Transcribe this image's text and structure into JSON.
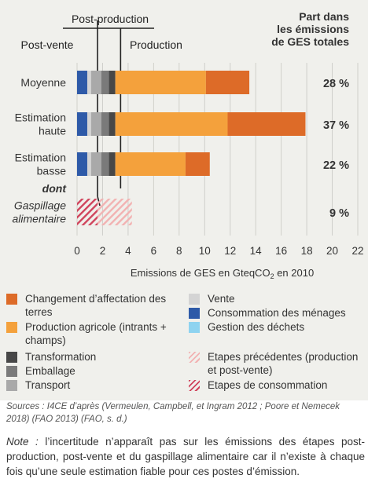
{
  "chart_data": {
    "type": "bar",
    "stacked": true,
    "orientation": "horizontal",
    "categories": [
      "Moyenne",
      "Estimation haute",
      "Estimation basse",
      "Gaspillage alimentaire"
    ],
    "category_lines": [
      [
        "Moyenne"
      ],
      [
        "Estimation",
        "haute"
      ],
      [
        "Estimation",
        "basse"
      ],
      [
        "Gaspillage",
        "alimentaire"
      ]
    ],
    "dont_label": "dont",
    "series": [
      {
        "name": "Consommation des ménages",
        "color": "#2e5aa8",
        "values": [
          0.8,
          0.8,
          0.8,
          null
        ]
      },
      {
        "name": "Vente",
        "color": "#d4d4d4",
        "values": [
          0.3,
          0.3,
          0.3,
          null
        ]
      },
      {
        "name": "Transport",
        "color": "#a9a9a9",
        "values": [
          0.8,
          0.8,
          0.8,
          null
        ]
      },
      {
        "name": "Emballage",
        "color": "#7a7a7a",
        "values": [
          0.6,
          0.6,
          0.6,
          null
        ]
      },
      {
        "name": "Transformation",
        "color": "#474747",
        "values": [
          0.5,
          0.5,
          0.5,
          null
        ]
      },
      {
        "name": "Production agricole (intrants + champs)",
        "color": "#f4a13c",
        "values": [
          7.1,
          8.8,
          5.5,
          null
        ]
      },
      {
        "name": "Changement d'affectation des terres",
        "color": "#dd6b28",
        "values": [
          3.4,
          6.1,
          1.9,
          null
        ]
      },
      {
        "name": "Etapes de consommation",
        "color": "#d0445c",
        "values": [
          null,
          null,
          null,
          1.6
        ]
      },
      {
        "name": "Etapes précédentes (production et post-vente)",
        "color": "#f2b2b2",
        "values": [
          null,
          null,
          null,
          2.7
        ]
      }
    ],
    "share_header": [
      "Part dans",
      "les émissions",
      "de GES totales"
    ],
    "shares": [
      "28 %",
      "37 %",
      "22 %",
      "9 %"
    ],
    "stage_labels": {
      "post_production": "Post-production",
      "post_vente": "Post-vente",
      "production": "Production"
    },
    "xlabel_prefix": "Emissions de GES en GteqCO",
    "xlabel_sub": "2",
    "xlabel_suffix": " en 2010",
    "xticks": [
      0,
      2,
      4,
      6,
      8,
      10,
      12,
      14,
      16,
      18,
      20,
      22
    ],
    "xlim": [
      0,
      22
    ]
  },
  "legend": [
    {
      "label": "Changement d’affectation des terres",
      "color": "#dd6b28",
      "pattern": "solid"
    },
    {
      "label": "Production agricole (intrants + champs)",
      "color": "#f4a13c",
      "pattern": "solid"
    },
    {
      "label": "Transformation",
      "color": "#474747",
      "pattern": "solid"
    },
    {
      "label": "Emballage",
      "color": "#7a7a7a",
      "pattern": "solid"
    },
    {
      "label": "Transport",
      "color": "#a9a9a9",
      "pattern": "solid"
    },
    {
      "label": "Vente",
      "color": "#d4d4d4",
      "pattern": "solid"
    },
    {
      "label": "Consommation des ménages",
      "color": "#2e5aa8",
      "pattern": "solid"
    },
    {
      "label": "Gestion des déchets",
      "color": "#8ed3f0",
      "pattern": "solid"
    },
    {
      "label": "Etapes précédentes (production et post-vente)",
      "color": "#f2b2b2",
      "pattern": "hatch"
    },
    {
      "label": "Etapes de consommation",
      "color": "#d0445c",
      "pattern": "hatch"
    }
  ],
  "sources": "Sources : I4CE d’après (Vermeulen, Campbell, et Ingram 2012 ; Poore et Nemecek 2018) (FAO 2013) (FAO, s. d.)",
  "note": {
    "label": "Note :",
    "text": " l’incertitude n’apparaît pas sur les émissions des étapes post-production, post-vente et du gaspillage alimentaire car il n’existe à chaque fois qu’une seule estimation fiable pour ces postes d’émission."
  }
}
